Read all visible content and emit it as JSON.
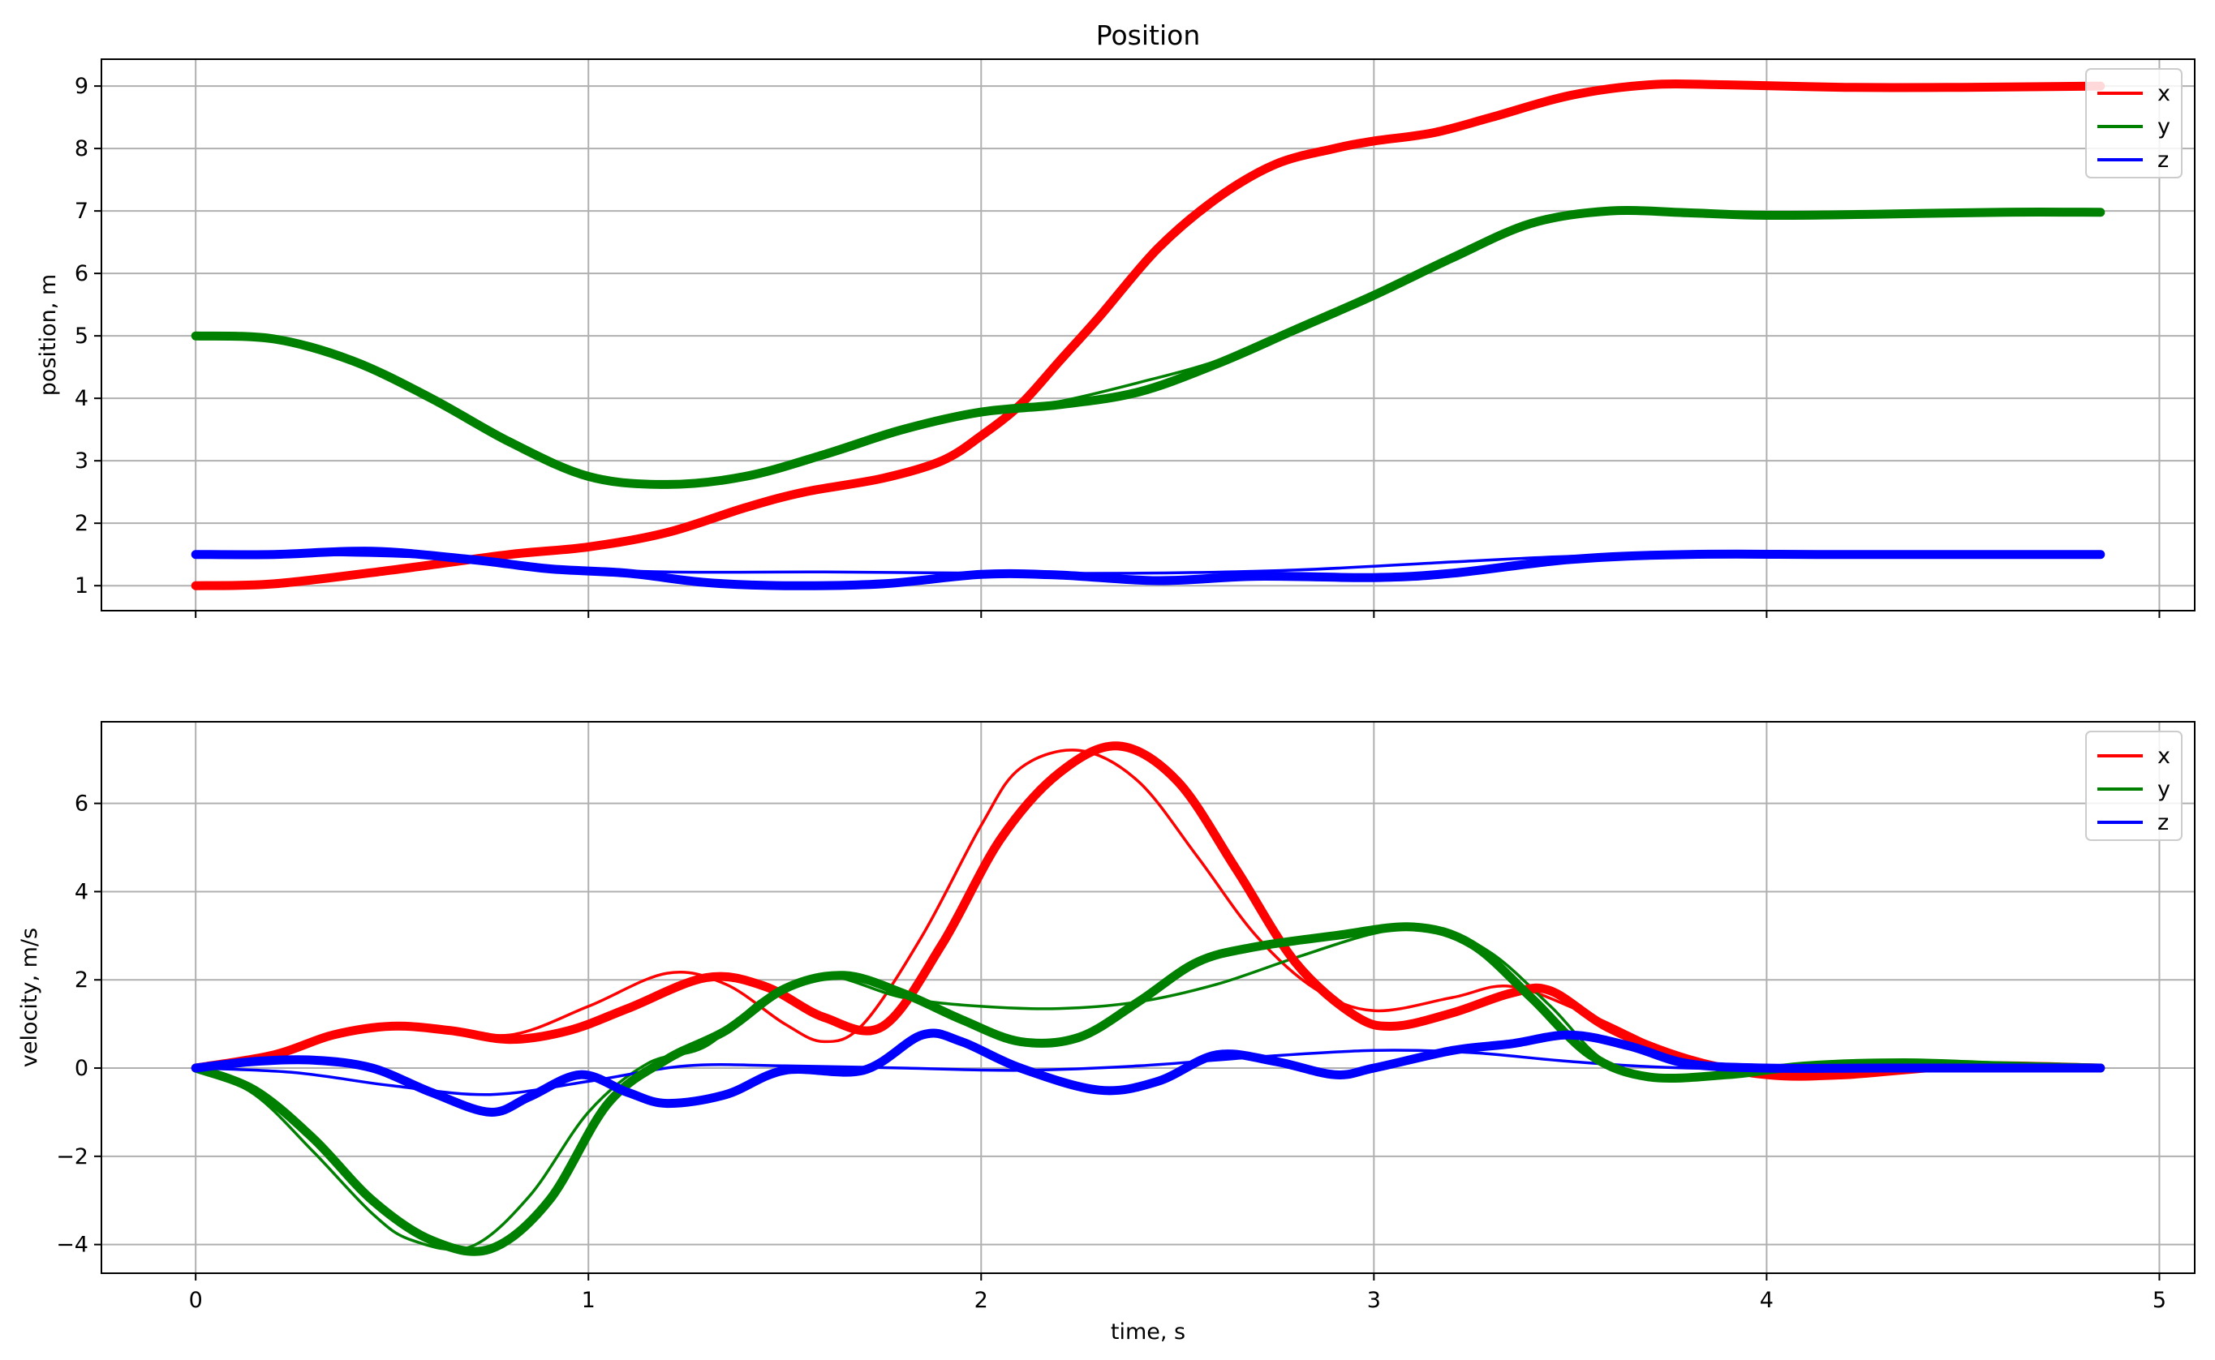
{
  "chart_data": [
    {
      "type": "line",
      "title": "Position",
      "xlabel": "",
      "ylabel": "position, m",
      "xlim": [
        -0.24,
        5.09
      ],
      "ylim": [
        0.6,
        9.43
      ],
      "xticks": [
        0,
        1,
        2,
        3,
        4,
        5
      ],
      "xtick_labels": [
        "",
        "",
        "",
        "",
        "",
        ""
      ],
      "yticks": [
        1,
        2,
        3,
        4,
        5,
        6,
        7,
        8,
        9
      ],
      "ytick_labels": [
        "1",
        "2",
        "3",
        "4",
        "5",
        "6",
        "7",
        "8",
        "9"
      ],
      "grid": true,
      "legend_position": "top-right",
      "legend": [
        "x",
        "y",
        "z"
      ],
      "series": [
        {
          "name": "x",
          "color": "#ff0000",
          "kind": "actual",
          "x": [
            0,
            0.2,
            0.5,
            0.8,
            1.0,
            1.2,
            1.4,
            1.55,
            1.75,
            1.9,
            2.0,
            2.1,
            2.2,
            2.3,
            2.45,
            2.6,
            2.75,
            2.9,
            3.0,
            3.15,
            3.3,
            3.5,
            3.7,
            3.9,
            4.2,
            4.5,
            4.85
          ],
          "y": [
            1.0,
            1.03,
            1.25,
            1.5,
            1.62,
            1.85,
            2.25,
            2.5,
            2.72,
            3.0,
            3.4,
            3.9,
            4.6,
            5.3,
            6.4,
            7.2,
            7.75,
            8.0,
            8.12,
            8.25,
            8.5,
            8.85,
            9.02,
            9.02,
            8.98,
            8.98,
            9.0
          ]
        },
        {
          "name": "x",
          "color": "#ff0000",
          "kind": "reference",
          "x": [
            0,
            0.2,
            0.5,
            0.8,
            1.0,
            1.2,
            1.4,
            1.55,
            1.75,
            1.9,
            2.0,
            2.1,
            2.2,
            2.3,
            2.45,
            2.6,
            2.75,
            2.9,
            3.0,
            3.15,
            3.3,
            3.5,
            3.7,
            3.9,
            4.2,
            4.5,
            4.85
          ],
          "y": [
            1.0,
            1.03,
            1.25,
            1.5,
            1.62,
            1.85,
            2.25,
            2.5,
            2.72,
            3.0,
            3.4,
            3.9,
            4.6,
            5.3,
            6.4,
            7.2,
            7.75,
            8.0,
            8.12,
            8.25,
            8.5,
            8.85,
            9.02,
            9.02,
            8.98,
            8.98,
            9.0
          ]
        },
        {
          "name": "y",
          "color": "#008000",
          "kind": "actual",
          "x": [
            0,
            0.2,
            0.4,
            0.6,
            0.8,
            1.0,
            1.2,
            1.4,
            1.6,
            1.8,
            2.0,
            2.2,
            2.4,
            2.6,
            2.8,
            3.0,
            3.2,
            3.4,
            3.6,
            3.8,
            4.0,
            4.3,
            4.6,
            4.85
          ],
          "y": [
            5.0,
            4.95,
            4.6,
            4.0,
            3.3,
            2.75,
            2.62,
            2.75,
            3.1,
            3.5,
            3.78,
            3.9,
            4.1,
            4.55,
            5.1,
            5.65,
            6.25,
            6.8,
            7.0,
            6.97,
            6.93,
            6.95,
            6.98,
            6.98
          ]
        },
        {
          "name": "y",
          "color": "#008000",
          "kind": "reference",
          "x": [
            0,
            0.2,
            0.4,
            0.6,
            0.8,
            1.0,
            1.2,
            1.4,
            1.6,
            1.8,
            2.0,
            2.2,
            2.4,
            2.6,
            2.8,
            3.0,
            3.2,
            3.4,
            3.6,
            3.8,
            4.0,
            4.3,
            4.6,
            4.85
          ],
          "y": [
            5.0,
            4.95,
            4.6,
            4.0,
            3.3,
            2.75,
            2.62,
            2.75,
            3.05,
            3.45,
            3.75,
            3.95,
            4.25,
            4.6,
            5.1,
            5.65,
            6.25,
            6.8,
            7.0,
            6.97,
            6.93,
            6.95,
            6.98,
            6.98
          ]
        },
        {
          "name": "z",
          "color": "#0000ff",
          "kind": "actual",
          "x": [
            0,
            0.2,
            0.45,
            0.7,
            0.9,
            1.1,
            1.3,
            1.5,
            1.75,
            2.0,
            2.2,
            2.45,
            2.7,
            3.0,
            3.2,
            3.5,
            3.8,
            4.2,
            4.85
          ],
          "y": [
            1.5,
            1.5,
            1.55,
            1.42,
            1.27,
            1.2,
            1.05,
            1.0,
            1.03,
            1.18,
            1.17,
            1.08,
            1.15,
            1.13,
            1.2,
            1.42,
            1.5,
            1.5,
            1.5
          ]
        },
        {
          "name": "z",
          "color": "#0000ff",
          "kind": "reference",
          "x": [
            0,
            0.3,
            0.6,
            0.9,
            1.2,
            1.6,
            2.0,
            2.4,
            2.8,
            3.2,
            3.5,
            3.8,
            4.2,
            4.85
          ],
          "y": [
            1.5,
            1.5,
            1.45,
            1.3,
            1.22,
            1.22,
            1.2,
            1.2,
            1.25,
            1.38,
            1.47,
            1.5,
            1.5,
            1.5
          ]
        }
      ]
    },
    {
      "type": "line",
      "title": "",
      "xlabel": "time, s",
      "ylabel": "velocity, m/s",
      "xlim": [
        -0.24,
        5.09
      ],
      "ylim": [
        -4.65,
        7.85
      ],
      "xticks": [
        0,
        1,
        2,
        3,
        4,
        5
      ],
      "xtick_labels": [
        "0",
        "1",
        "2",
        "3",
        "4",
        "5"
      ],
      "yticks": [
        -4,
        -2,
        0,
        2,
        4,
        6
      ],
      "ytick_labels": [
        "−4",
        "−2",
        "0",
        "2",
        "4",
        "6"
      ],
      "grid": true,
      "legend_position": "top-right",
      "legend": [
        "x",
        "y",
        "z"
      ],
      "series": [
        {
          "name": "x",
          "color": "#ff0000",
          "kind": "actual",
          "x": [
            0,
            0.2,
            0.35,
            0.5,
            0.65,
            0.8,
            0.95,
            1.1,
            1.3,
            1.45,
            1.6,
            1.75,
            1.9,
            2.05,
            2.2,
            2.35,
            2.5,
            2.65,
            2.8,
            2.95,
            3.05,
            3.2,
            3.35,
            3.45,
            3.6,
            3.8,
            4.0,
            4.2,
            4.5,
            4.85
          ],
          "y": [
            0,
            0.3,
            0.75,
            0.95,
            0.85,
            0.65,
            0.85,
            1.35,
            2.05,
            1.85,
            1.15,
            0.95,
            2.8,
            5.2,
            6.7,
            7.3,
            6.5,
            4.5,
            2.4,
            1.2,
            0.95,
            1.25,
            1.7,
            1.75,
            0.9,
            0.2,
            -0.15,
            -0.15,
            0.05,
            0.0
          ]
        },
        {
          "name": "x",
          "color": "#ff0000",
          "kind": "reference",
          "x": [
            0,
            0.2,
            0.4,
            0.6,
            0.8,
            1.0,
            1.2,
            1.35,
            1.5,
            1.6,
            1.7,
            1.85,
            2.0,
            2.1,
            2.25,
            2.4,
            2.55,
            2.7,
            2.85,
            3.0,
            3.2,
            3.35,
            3.55,
            3.8,
            4.0,
            4.2,
            4.5,
            4.85
          ],
          "y": [
            0,
            0.3,
            0.8,
            0.95,
            0.75,
            1.4,
            2.15,
            1.9,
            1.0,
            0.6,
            1.0,
            3.0,
            5.5,
            6.8,
            7.2,
            6.5,
            4.8,
            3.0,
            1.8,
            1.3,
            1.6,
            1.85,
            1.2,
            0.2,
            -0.1,
            -0.1,
            0.05,
            0.0
          ]
        },
        {
          "name": "y",
          "color": "#008000",
          "kind": "actual",
          "x": [
            0,
            0.15,
            0.3,
            0.45,
            0.6,
            0.75,
            0.9,
            1.05,
            1.2,
            1.35,
            1.5,
            1.65,
            1.8,
            1.95,
            2.1,
            2.25,
            2.4,
            2.55,
            2.7,
            2.9,
            3.1,
            3.25,
            3.4,
            3.55,
            3.7,
            3.9,
            4.1,
            4.35,
            4.6,
            4.85
          ],
          "y": [
            0,
            -0.5,
            -1.6,
            -3.0,
            -3.9,
            -4.1,
            -3.0,
            -0.8,
            0.2,
            0.85,
            1.8,
            2.1,
            1.7,
            1.1,
            0.6,
            0.7,
            1.5,
            2.4,
            2.75,
            3.0,
            3.2,
            2.8,
            1.6,
            0.3,
            -0.2,
            -0.15,
            0.05,
            0.12,
            0.05,
            0.0
          ]
        },
        {
          "name": "y",
          "color": "#008000",
          "kind": "reference",
          "x": [
            0,
            0.15,
            0.3,
            0.45,
            0.55,
            0.7,
            0.85,
            1.0,
            1.15,
            1.3,
            1.45,
            1.6,
            1.8,
            2.0,
            2.2,
            2.4,
            2.6,
            2.8,
            3.0,
            3.15,
            3.3,
            3.45,
            3.6,
            3.8,
            4.0,
            4.3,
            4.6,
            4.85
          ],
          "y": [
            0,
            -0.6,
            -1.9,
            -3.3,
            -3.9,
            -4.05,
            -2.9,
            -1.0,
            0.1,
            0.5,
            1.6,
            2.1,
            1.6,
            1.4,
            1.35,
            1.5,
            1.9,
            2.5,
            3.05,
            3.2,
            2.6,
            1.4,
            0.1,
            -0.2,
            -0.1,
            0.1,
            0.05,
            0.0
          ]
        },
        {
          "name": "z",
          "color": "#0000ff",
          "kind": "actual",
          "x": [
            0,
            0.15,
            0.3,
            0.45,
            0.6,
            0.75,
            0.85,
            0.98,
            1.1,
            1.2,
            1.35,
            1.5,
            1.7,
            1.85,
            1.95,
            2.1,
            2.3,
            2.45,
            2.6,
            2.75,
            2.9,
            3.0,
            3.2,
            3.35,
            3.5,
            3.65,
            3.8,
            4.0,
            4.3,
            4.85
          ],
          "y": [
            0,
            0.15,
            0.18,
            0.0,
            -0.55,
            -1.0,
            -0.65,
            -0.15,
            -0.55,
            -0.8,
            -0.6,
            -0.05,
            -0.05,
            0.75,
            0.6,
            0.0,
            -0.5,
            -0.3,
            0.3,
            0.15,
            -0.15,
            0.0,
            0.4,
            0.55,
            0.75,
            0.5,
            0.1,
            0.0,
            0.0,
            0.0
          ]
        },
        {
          "name": "z",
          "color": "#0000ff",
          "kind": "reference",
          "x": [
            0,
            0.25,
            0.5,
            0.75,
            1.0,
            1.25,
            1.5,
            1.8,
            2.1,
            2.4,
            2.7,
            3.0,
            3.25,
            3.5,
            3.8,
            4.2,
            4.85
          ],
          "y": [
            0,
            -0.1,
            -0.4,
            -0.6,
            -0.3,
            0.05,
            0.05,
            0.0,
            -0.05,
            0.05,
            0.25,
            0.4,
            0.35,
            0.15,
            0.0,
            0.0,
            0.0
          ]
        }
      ]
    }
  ]
}
